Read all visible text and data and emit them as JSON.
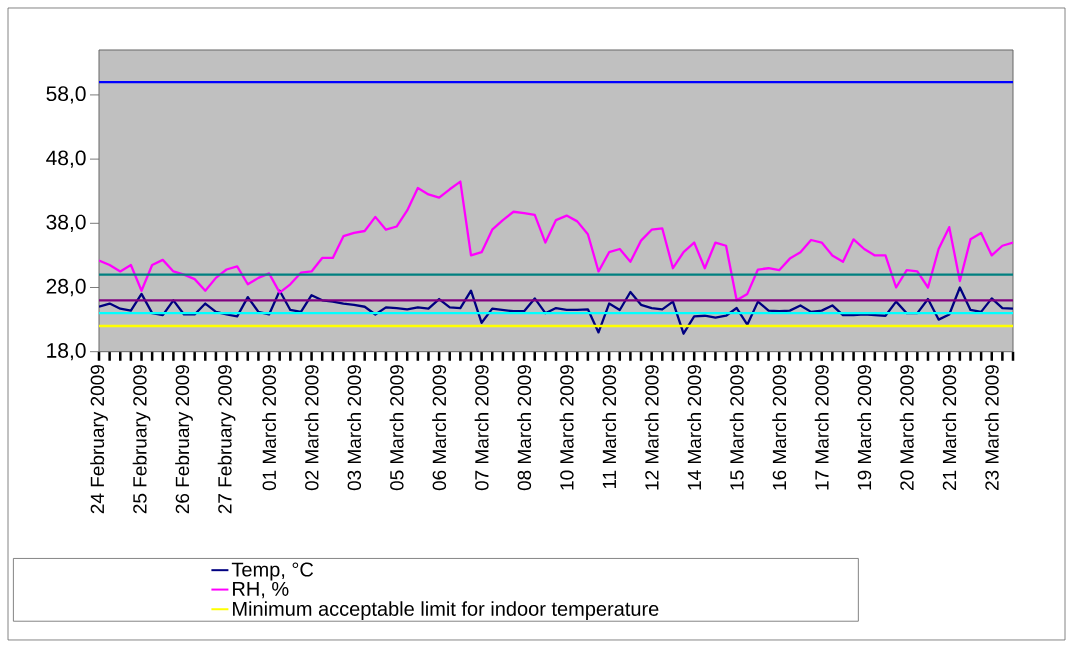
{
  "chart_data": {
    "type": "line",
    "categories": [
      "24 February 2009",
      null,
      null,
      null,
      "25 February 2009",
      null,
      null,
      null,
      "26 February 2009",
      null,
      null,
      null,
      "27 February 2009",
      null,
      null,
      null,
      "01 March 2009",
      null,
      null,
      null,
      "02 March 2009",
      null,
      null,
      null,
      "03 March 2009",
      null,
      null,
      null,
      "05 March 2009",
      null,
      null,
      null,
      "06 March 2009",
      null,
      null,
      null,
      "07 March 2009",
      null,
      null,
      null,
      "08 March 2009",
      null,
      null,
      null,
      "10 March 2009",
      null,
      null,
      null,
      "11 March 2009",
      null,
      null,
      null,
      "12 March 2009",
      null,
      null,
      null,
      "14 March 2009",
      null,
      null,
      null,
      "15 March 2009",
      null,
      null,
      null,
      "16 March 2009",
      null,
      null,
      null,
      "17 March 2009",
      null,
      null,
      null,
      "19 March 2009",
      null,
      null,
      null,
      "20 March 2009",
      null,
      null,
      null,
      "21 March 2009",
      null,
      null,
      null,
      "23 March 2009",
      null,
      null
    ],
    "series": [
      {
        "name": "Temp, °C",
        "color": "#000080",
        "values": [
          25,
          25.5,
          24.7,
          24.4,
          27,
          24,
          23.7,
          26,
          23.8,
          23.8,
          25.5,
          24.2,
          23.8,
          23.5,
          26.5,
          24.2,
          23.8,
          27.5,
          24.5,
          24.2,
          26.8,
          26,
          25.8,
          25.5,
          25.3,
          25,
          23.8,
          24.9,
          24.8,
          24.6,
          24.9,
          24.7,
          26.2,
          24.9,
          24.8,
          27.5,
          22.5,
          24.7,
          24.5,
          24.3,
          24.3,
          26.3,
          24,
          24.8,
          24.5,
          24.5,
          24.6,
          21,
          25.5,
          24.5,
          27.3,
          25.3,
          24.8,
          24.6,
          25.8,
          20.8,
          23.5,
          23.6,
          23.3,
          23.6,
          24.8,
          22.2,
          25.8,
          24.4,
          24.3,
          24.4,
          25.2,
          24.2,
          24.4,
          25.2,
          23.7,
          23.7,
          23.8,
          23.7,
          23.6,
          25.8,
          24,
          24,
          26.2,
          23,
          23.8,
          28,
          24.5,
          24.2,
          26.3,
          24.8,
          24.7
        ]
      },
      {
        "name": "RH, %",
        "color": "#ff00ff",
        "values": [
          32.2,
          31.5,
          30.5,
          31.5,
          27.5,
          31.5,
          32.3,
          30.5,
          30,
          29.3,
          27.5,
          29.5,
          30.8,
          31.3,
          28.5,
          29.5,
          30.2,
          27.2,
          28.5,
          30.3,
          30.5,
          32.6,
          32.6,
          36,
          36.5,
          36.8,
          39,
          37,
          37.5,
          40,
          43.5,
          42.5,
          42,
          43.3,
          44.5,
          33,
          33.5,
          37,
          38.5,
          39.8,
          39.6,
          39.3,
          35,
          38.5,
          39.2,
          38.3,
          36.3,
          30.5,
          33.5,
          34,
          32,
          35.3,
          37,
          37.2,
          31,
          33.5,
          35,
          31,
          35,
          34.5,
          26,
          27,
          30.8,
          31,
          30.7,
          32.5,
          33.5,
          35.4,
          35,
          33,
          32,
          35.5,
          34,
          33,
          33,
          28,
          30.7,
          30.5,
          28,
          34,
          37.4,
          29,
          35.5,
          36.5,
          33,
          34.5,
          35
        ]
      }
    ],
    "ref_lines": [
      {
        "axis": "y",
        "value": 60,
        "color": "#0000ff"
      },
      {
        "axis": "y",
        "value": 30,
        "color": "#008080"
      },
      {
        "axis": "y",
        "value": 26,
        "color": "#800080"
      },
      {
        "axis": "y",
        "value": 24,
        "color": "#00ffff"
      },
      {
        "axis": "y",
        "value": 22,
        "color": "#ffff00",
        "label": "Minimum acceptable limit for indoor temperature"
      }
    ],
    "ylim": [
      18,
      65
    ],
    "yticks": [
      {
        "value": 18,
        "label": "18,0"
      },
      {
        "value": 28,
        "label": "28,0"
      },
      {
        "value": 38,
        "label": "38,0"
      },
      {
        "value": 48,
        "label": "48,0"
      },
      {
        "value": 58,
        "label": "58,0"
      }
    ],
    "legend": "bottom",
    "marker": "none",
    "line_style": "solid"
  }
}
